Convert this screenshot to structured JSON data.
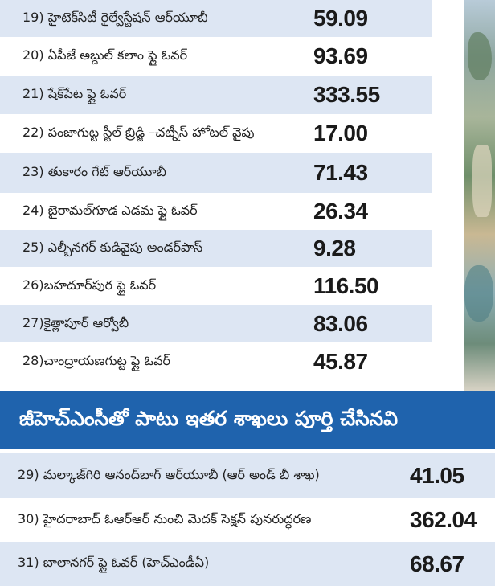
{
  "top_rows": [
    {
      "label": "19) హైటెక్‌సిటీ రైల్వేస్టేషన్ ఆర్‌యూబీ",
      "value": "59.09"
    },
    {
      "label": "20) ఏపీజే అబ్దుల్ కలాం ఫ్లై ఓవర్",
      "value": "93.69"
    },
    {
      "label": "21) షేక్‌పేట ఫ్లై ఓవర్",
      "value": "333.55"
    },
    {
      "label": "22) పంజాగుట్ట స్టీల్ బ్రిడ్జి –చట్నీస్ హోటల్ వైపు",
      "value": "17.00"
    },
    {
      "label": "23) తుకారం గేట్ ఆర్‌యూబీ",
      "value": "71.43"
    },
    {
      "label": "24) బైరామల్‌గూడ ఎడమ ఫ్లై ఓవర్",
      "value": "26.34"
    },
    {
      "label": "25) ఎల్బీనగర్ కుడివైపు అండర్‌పాస్",
      "value": "9.28"
    },
    {
      "label": "26)బహదూర్‌పుర ఫ్లై ఓవర్",
      "value": "116.50"
    },
    {
      "label": "27)కైత్లాపూర్ ఆర్వోబీ",
      "value": "83.06"
    },
    {
      "label": "28)చాంద్రాయణగుట్ట ఫ్లై ఓవర్",
      "value": "45.87"
    }
  ],
  "banner": {
    "title": "జీహెచ్ఎంసీతో పాటు ఇతర శాఖలు పూర్తి చేసినవి"
  },
  "bottom_rows": [
    {
      "label": "29) మల్కాజ్‌గిరి ఆనంద్‌బాగ్ ఆర్‌యూబీ (ఆర్ అండ్ బీ శాఖ)",
      "value": "41.05"
    },
    {
      "label": "30) హైదరాబాద్ ఓఆర్ఆర్ నుంచి మెదక్ సెక్షన్ పునరుద్ధరణ",
      "value": "362.04"
    },
    {
      "label": "31) బాలానగర్ ఫ్లై ఓవర్ (హెచ్ఎండీఏ)",
      "value": "68.67"
    }
  ],
  "colors": {
    "row_alt": "#dde6f3",
    "banner": "#1f63ad"
  }
}
